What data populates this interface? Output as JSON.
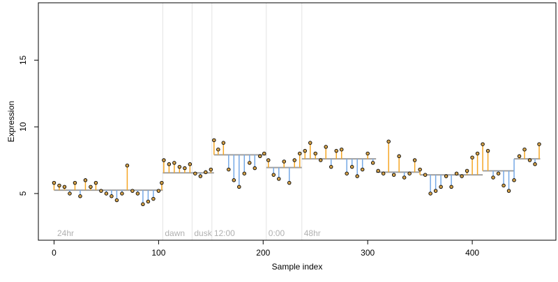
{
  "chart_data": {
    "type": "scatter",
    "title": "",
    "xlabel": "Sample index",
    "ylabel": "Expression",
    "xlim": [
      -15,
      480
    ],
    "ylim": [
      1.5,
      19.3
    ],
    "xticks": [
      0,
      100,
      200,
      300,
      400
    ],
    "yticks": [
      5,
      10,
      15
    ],
    "grid": false,
    "colors": {
      "above": "#f5a623",
      "below": "#74a8e6",
      "segment": "#a0a0a0",
      "divider": "#e3e3e3",
      "point_fill": "#d4a24a"
    },
    "segments": [
      {
        "x0": 0,
        "x1": 104,
        "level": 5.25
      },
      {
        "x0": 104,
        "x1": 153,
        "level": 6.55
      },
      {
        "x0": 153,
        "x1": 203,
        "level": 7.9
      },
      {
        "x0": 203,
        "x1": 237,
        "level": 6.95
      },
      {
        "x0": 237,
        "x1": 308,
        "level": 7.6
      },
      {
        "x0": 308,
        "x1": 350,
        "level": 6.6
      },
      {
        "x0": 350,
        "x1": 410,
        "level": 6.4
      },
      {
        "x0": 410,
        "x1": 440,
        "level": 6.7
      },
      {
        "x0": 440,
        "x1": 465,
        "level": 7.6
      }
    ],
    "dividers": [
      {
        "x": 104,
        "label": "dawn"
      },
      {
        "x": 132,
        "label": "dusk"
      },
      {
        "x": 151,
        "label": "12:00"
      },
      {
        "x": 203,
        "label": "0:00"
      },
      {
        "x": 237,
        "label": "48hr"
      }
    ],
    "region_labels": [
      {
        "x": 3,
        "label": "24hr"
      }
    ],
    "points": {
      "x": [
        0,
        5,
        10,
        15,
        20,
        25,
        30,
        35,
        40,
        45,
        50,
        55,
        60,
        65,
        70,
        75,
        80,
        85,
        90,
        95,
        100,
        103,
        105,
        110,
        115,
        120,
        125,
        130,
        135,
        140,
        145,
        150,
        153,
        157,
        162,
        167,
        172,
        177,
        182,
        187,
        192,
        197,
        201,
        205,
        210,
        215,
        220,
        225,
        230,
        235,
        240,
        245,
        250,
        255,
        260,
        265,
        270,
        275,
        280,
        285,
        290,
        295,
        300,
        305,
        310,
        315,
        320,
        325,
        330,
        335,
        340,
        345,
        350,
        355,
        360,
        365,
        370,
        375,
        380,
        385,
        390,
        395,
        400,
        405,
        410,
        415,
        420,
        425,
        430,
        435,
        440,
        445,
        450,
        455,
        460,
        464
      ],
      "y": [
        5.8,
        5.6,
        5.5,
        5.0,
        5.8,
        4.8,
        6.0,
        5.5,
        5.8,
        5.2,
        5.0,
        4.8,
        4.5,
        5.0,
        7.1,
        5.2,
        5.0,
        4.2,
        4.4,
        4.6,
        5.2,
        5.8,
        7.5,
        7.2,
        7.3,
        7.0,
        6.9,
        7.2,
        6.5,
        6.3,
        6.6,
        6.8,
        9.0,
        8.3,
        8.8,
        6.8,
        6.0,
        5.5,
        6.5,
        7.3,
        6.9,
        7.8,
        8.0,
        7.5,
        6.4,
        6.1,
        7.4,
        5.8,
        7.5,
        8.0,
        8.2,
        8.8,
        8.0,
        7.5,
        8.5,
        7.0,
        8.2,
        8.3,
        6.5,
        7.0,
        6.3,
        6.8,
        8.0,
        7.3,
        6.7,
        6.5,
        8.9,
        6.4,
        7.8,
        6.2,
        6.5,
        7.5,
        6.8,
        6.4,
        5.0,
        5.2,
        5.5,
        6.3,
        5.5,
        6.5,
        6.3,
        6.7,
        7.7,
        8.0,
        8.7,
        8.2,
        6.2,
        6.5,
        5.6,
        5.2,
        6.0,
        7.8,
        8.3,
        7.5,
        7.2,
        8.7
      ]
    }
  }
}
